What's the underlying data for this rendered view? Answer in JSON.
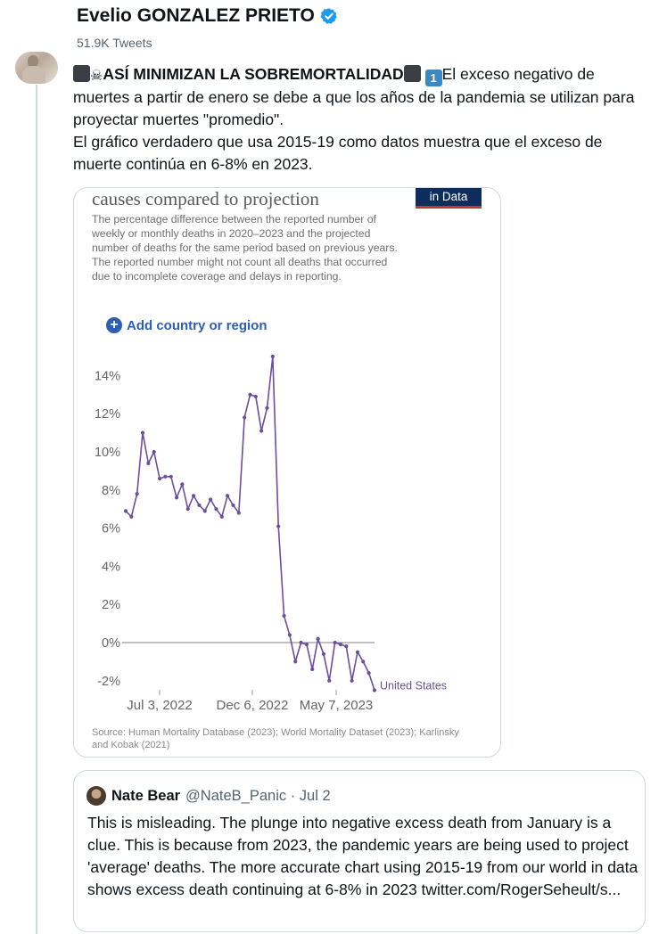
{
  "header": {
    "display_name": "Evelio GONZALEZ PRIETO",
    "tweet_count": "51.9K Tweets"
  },
  "tweet": {
    "line1_bold": "ASÍ MINIMIZAN LA SOBREMORTALIDAD",
    "line1_rest": "El exceso negativo de muertes a partir de enero se debe a que los años de la pandemia se utilizan para proyectar muertes \"promedio\".",
    "line2": "El gráfico verdadero que usa 2015-19 como datos muestra que el exceso de muerte continúa en 6-8% en 2023.",
    "emoji_one": "1"
  },
  "chart_card": {
    "title": "causes compared to projection",
    "logo_text": "in Data",
    "description": "The percentage difference between the reported number of weekly or monthly deaths in 2020–2023 and the projected number of deaths for the same period based on previous years. The reported number might not count all deaths that occurred due to incomplete coverage and delays in reporting.",
    "add_country_label": "Add country or region",
    "source": "Source: Human Mortality Database (2023); World Mortality Dataset (2023); Karlinsky and Kobak (2021)"
  },
  "chart_data": {
    "type": "line",
    "ylim": [
      -2.5,
      15
    ],
    "yticks": [
      "14%",
      "12%",
      "10%",
      "8%",
      "6%",
      "4%",
      "2%",
      "0%",
      "-2%"
    ],
    "ytick_values": [
      14,
      12,
      10,
      8,
      6,
      4,
      2,
      0,
      -2
    ],
    "xticks": [
      "Jul 3, 2022",
      "Dec 6, 2022",
      "May 7, 2023"
    ],
    "series": [
      {
        "name": "United States",
        "color": "#6b4f9e",
        "values": [
          6.9,
          6.6,
          7.8,
          11.0,
          9.4,
          10.0,
          8.6,
          8.7,
          8.7,
          7.6,
          8.3,
          7.0,
          7.7,
          7.2,
          6.9,
          7.5,
          7.0,
          6.6,
          7.7,
          7.2,
          6.8,
          11.8,
          13.0,
          12.9,
          11.1,
          12.3,
          15.0,
          6.1,
          1.4,
          0.4,
          -1.0,
          0.0,
          -0.1,
          -1.4,
          0.2,
          -0.6,
          -2.0,
          0.0,
          -0.1,
          -0.2,
          -2.0,
          -0.5,
          -1.0,
          -1.6,
          -2.5
        ]
      }
    ]
  },
  "quote": {
    "name": "Nate Bear",
    "handle": "@NateB_Panic · Jul 2",
    "text": "This is misleading. The plunge into negative excess death from January is a clue. This is because from 2023, the pandemic years are being used to project 'average' deaths. The more accurate chart using 2015-19 from our world in data shows excess death continuing at 6-8% in 2023 twitter.com/RogerSeheult/s..."
  },
  "colors": {
    "line": "#6b4f9e",
    "verified": "#1d9bf0",
    "link": "#2d5db5"
  }
}
